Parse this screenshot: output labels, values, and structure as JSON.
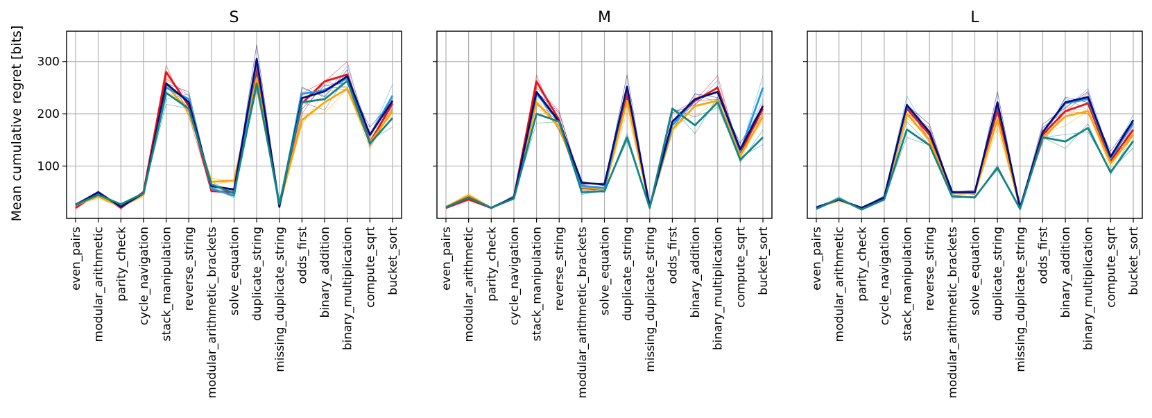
{
  "figure": {
    "ylabel": "Mean cumulative regret [bits]"
  },
  "colors": {
    "red": "#ee1111",
    "orange": "#ffa500",
    "light_blue": "#1e9be6",
    "navy": "#0a0a7a",
    "teal": "#138585",
    "grid": "#b0b0b0"
  },
  "chart_data": [
    {
      "type": "line",
      "title": "S",
      "xlabel": "",
      "ylabel": "Mean cumulative regret [bits]",
      "ylim": [
        0,
        358
      ],
      "yticks": [
        100,
        200,
        300
      ],
      "grid": true,
      "categories": [
        "even_pairs",
        "modular_arithmetic",
        "parity_check",
        "cycle_navigation",
        "stack_manipulation",
        "reverse_string",
        "modular_arithmetic_brackets",
        "solve_equation",
        "duplicate_string",
        "missing_duplicate_string",
        "odds_first",
        "binary_addition",
        "binary_multiplication",
        "compute_sqrt",
        "bucket_sort"
      ],
      "series": [
        {
          "name": "red",
          "color": "#ee1111",
          "values": [
            20,
            48,
            20,
            50,
            280,
            215,
            52,
            50,
            290,
            25,
            220,
            262,
            275,
            145,
            220
          ]
        },
        {
          "name": "orange",
          "color": "#ffa500",
          "values": [
            25,
            42,
            22,
            45,
            255,
            205,
            70,
            72,
            268,
            25,
            188,
            222,
            248,
            145,
            205
          ]
        },
        {
          "name": "light_blue",
          "color": "#1e9be6",
          "values": [
            25,
            47,
            24,
            48,
            250,
            228,
            57,
            43,
            300,
            25,
            238,
            245,
            268,
            158,
            235
          ]
        },
        {
          "name": "navy",
          "color": "#0a0a7a",
          "values": [
            26,
            50,
            22,
            48,
            258,
            222,
            62,
            55,
            305,
            22,
            230,
            243,
            272,
            160,
            225
          ]
        },
        {
          "name": "teal",
          "color": "#138585",
          "values": [
            26,
            45,
            27,
            48,
            240,
            210,
            65,
            48,
            258,
            27,
            222,
            228,
            263,
            143,
            192
          ]
        }
      ]
    },
    {
      "type": "line",
      "title": "M",
      "xlabel": "",
      "ylabel": "",
      "ylim": [
        0,
        358
      ],
      "yticks": [
        100,
        200,
        300
      ],
      "grid": true,
      "categories": [
        "even_pairs",
        "modular_arithmetic",
        "parity_check",
        "cycle_navigation",
        "stack_manipulation",
        "reverse_string",
        "modular_arithmetic_brackets",
        "solve_equation",
        "duplicate_string",
        "missing_duplicate_string",
        "odds_first",
        "binary_addition",
        "binary_multiplication",
        "compute_sqrt",
        "bucket_sort"
      ],
      "series": [
        {
          "name": "red",
          "color": "#ee1111",
          "values": [
            20,
            36,
            20,
            40,
            262,
            188,
            58,
            55,
            240,
            22,
            185,
            225,
            250,
            125,
            210
          ]
        },
        {
          "name": "orange",
          "color": "#ffa500",
          "values": [
            22,
            44,
            20,
            40,
            222,
            175,
            60,
            55,
            225,
            22,
            170,
            215,
            225,
            120,
            195
          ]
        },
        {
          "name": "light_blue",
          "color": "#1e9be6",
          "values": [
            21,
            40,
            20,
            40,
            238,
            185,
            62,
            58,
            250,
            22,
            178,
            228,
            242,
            128,
            250
          ]
        },
        {
          "name": "navy",
          "color": "#0a0a7a",
          "values": [
            21,
            40,
            20,
            40,
            242,
            185,
            68,
            65,
            252,
            22,
            185,
            228,
            242,
            132,
            215
          ]
        },
        {
          "name": "teal",
          "color": "#138585",
          "values": [
            21,
            40,
            20,
            38,
            200,
            185,
            50,
            52,
            155,
            20,
            210,
            178,
            222,
            112,
            155
          ]
        }
      ]
    },
    {
      "type": "line",
      "title": "L",
      "xlabel": "",
      "ylabel": "",
      "ylim": [
        0,
        358
      ],
      "yticks": [
        100,
        200,
        300
      ],
      "grid": true,
      "categories": [
        "even_pairs",
        "modular_arithmetic",
        "parity_check",
        "cycle_navigation",
        "stack_manipulation",
        "reverse_string",
        "modular_arithmetic_brackets",
        "solve_equation",
        "duplicate_string",
        "missing_duplicate_string",
        "odds_first",
        "binary_addition",
        "binary_multiplication",
        "compute_sqrt",
        "bucket_sort"
      ],
      "series": [
        {
          "name": "red",
          "color": "#ee1111",
          "values": [
            20,
            35,
            20,
            40,
            210,
            160,
            50,
            50,
            210,
            20,
            160,
            205,
            220,
            110,
            170
          ]
        },
        {
          "name": "orange",
          "color": "#ffa500",
          "values": [
            20,
            35,
            20,
            38,
            200,
            150,
            48,
            48,
            190,
            20,
            155,
            195,
            205,
            105,
            160
          ]
        },
        {
          "name": "light_blue",
          "color": "#1e9be6",
          "values": [
            21,
            36,
            20,
            40,
            215,
            165,
            50,
            50,
            220,
            20,
            165,
            220,
            228,
            115,
            182
          ]
        },
        {
          "name": "navy",
          "color": "#0a0a7a",
          "values": [
            21,
            36,
            20,
            40,
            217,
            165,
            50,
            50,
            222,
            20,
            165,
            222,
            232,
            118,
            188
          ]
        },
        {
          "name": "teal",
          "color": "#138585",
          "values": [
            18,
            38,
            17,
            36,
            170,
            140,
            42,
            40,
            97,
            18,
            155,
            147,
            173,
            88,
            148
          ]
        }
      ]
    }
  ]
}
